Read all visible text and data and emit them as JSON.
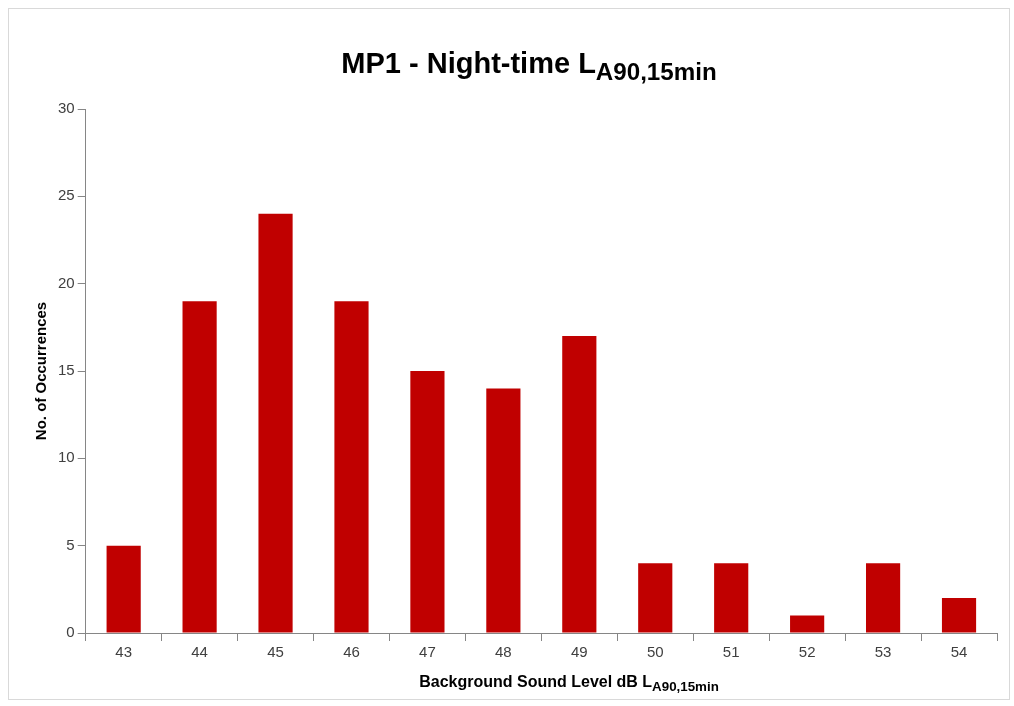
{
  "chart_data": {
    "type": "bar",
    "title": "MP1 - Night-time L$_{A90,15min}$",
    "xlabel": "Background Sound Level dB L$_{A90,15min}$",
    "ylabel": "No. of Occurrences",
    "categories": [
      "43",
      "44",
      "45",
      "46",
      "47",
      "48",
      "49",
      "50",
      "51",
      "52",
      "53",
      "54"
    ],
    "values": [
      5,
      19,
      24,
      19,
      15,
      14,
      17,
      4,
      4,
      1,
      4,
      2
    ],
    "color": "#c00000",
    "ylim": [
      0,
      30
    ],
    "yticks": [
      0,
      5,
      10,
      15,
      20,
      25,
      30
    ],
    "grid": false,
    "legend": false
  }
}
